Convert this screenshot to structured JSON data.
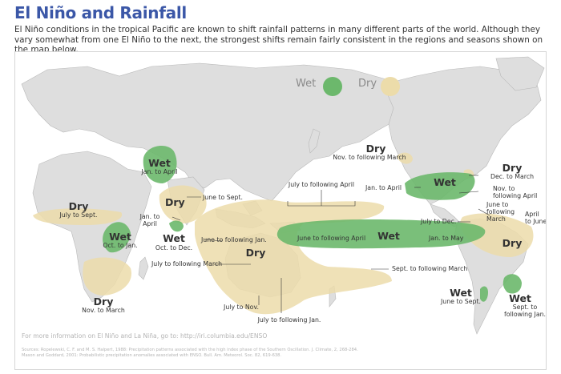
{
  "header": {
    "title": "El Niño and Rainfall",
    "intro": "El Niño conditions in the tropical Pacific are known to shift rainfall patterns in many different parts of the world. Although they vary somewhat from one El Niño to the next, the strongest shifts remain fairly consistent in the regions and seasons shown on the map below."
  },
  "legend": {
    "wet_label": "Wet",
    "dry_label": "Dry",
    "wet_color": "#6cb86c",
    "dry_color": "#ecdcaa"
  },
  "regions": {
    "east_africa": {
      "type": "Wet",
      "season": "Jan. to April"
    },
    "india": {
      "type": "Dry",
      "season": "June to Sept."
    },
    "west_africa": {
      "type": "Dry",
      "season": "July to Sept."
    },
    "sahel_note": {
      "season": "Jan. to April"
    },
    "horn_wet": {
      "type": "Wet",
      "season": "Oct. to Dec."
    },
    "central_africa": {
      "type": "Wet",
      "season": "Oct. to Jan."
    },
    "southern_africa": {
      "type": "Dry",
      "season": "Nov. to March"
    },
    "indonesia": {
      "type": "Dry",
      "seasons": [
        "June to following Jan.",
        "July to following March",
        "July to Nov.",
        "July to following Jan."
      ]
    },
    "central_pacific_dry": {
      "season": "July to following April"
    },
    "pacific_wet": {
      "type": "Wet",
      "seasons": [
        "June to following April",
        "Jan. to May"
      ]
    },
    "south_pacific_dry": {
      "season": "Sept. to following March"
    },
    "alaska": {
      "type": "Dry",
      "season": "Nov. to following March"
    },
    "us_south": {
      "type": "Wet",
      "season": "Jan. to April"
    },
    "us_east": {
      "type": "Dry",
      "season": "Dec. to March"
    },
    "us_southeast": {
      "season": "Nov. to following April"
    },
    "central_america": {
      "season": "June to following March"
    },
    "central_am_west": {
      "season": "July to Dec."
    },
    "brazil": {
      "type": "Dry",
      "season": "April to June"
    },
    "chile": {
      "type": "Wet",
      "season": "June to Sept."
    },
    "argentina": {
      "type": "Wet",
      "season": "Sept. to following Jan."
    }
  },
  "footer": {
    "more_info": "For more information on El Niño and La Niña, go to: http://iri.columbia.edu/ENSO",
    "sources_line1": "Sources: Ropelewski, C. F. and M. S. Halpert, 1988: Precipitation patterns associated with the high index phase of the Southern Oscillation. J. Climate, 2, 268-284.",
    "sources_line2": "Mason and Goddard, 2001: Probabilistic precipitation anomalies associated with ENSO. Bull. Am. Meteorol. Soc. 82, 619-638."
  }
}
